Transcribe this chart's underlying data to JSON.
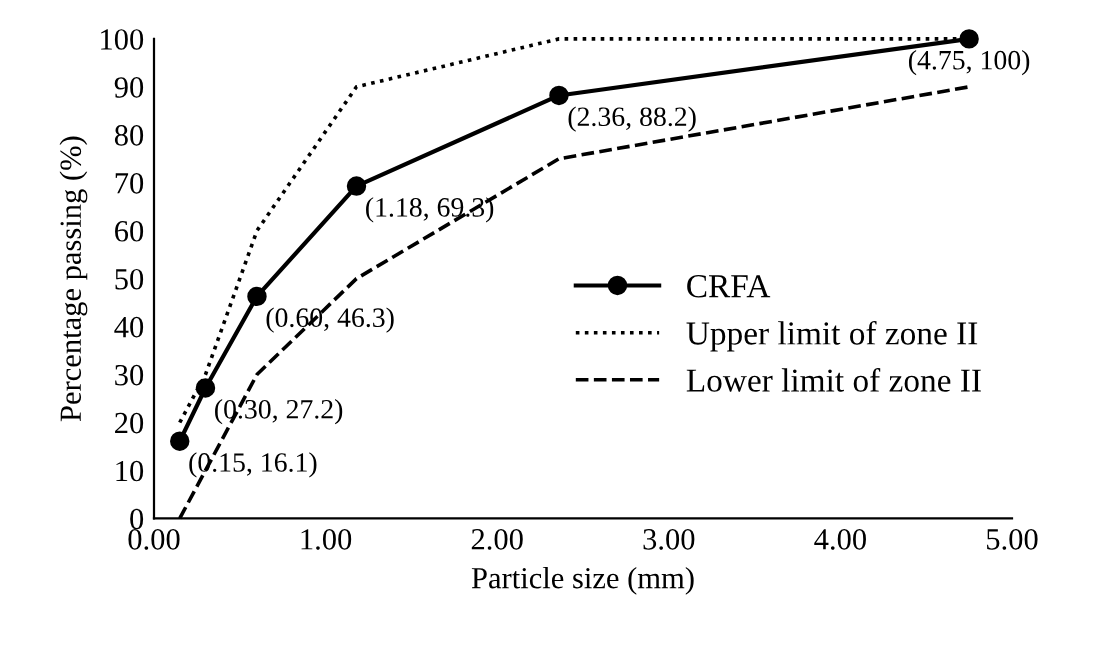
{
  "chart_data": {
    "type": "line",
    "xlabel": "Particle size (mm)",
    "ylabel": "Percentage passing (%)",
    "xlim": [
      0,
      5
    ],
    "xticks": [
      {
        "value": 0,
        "label": "0.00"
      },
      {
        "value": 1,
        "label": "1.00"
      },
      {
        "value": 2,
        "label": "2.00"
      },
      {
        "value": 3,
        "label": "3.00"
      },
      {
        "value": 4,
        "label": "4.00"
      },
      {
        "value": 5,
        "label": "5.00"
      }
    ],
    "ylim": [
      0,
      100
    ],
    "yticks": [
      0,
      10,
      20,
      30,
      40,
      50,
      60,
      70,
      80,
      90,
      100
    ],
    "grid": false,
    "legend": "right",
    "series": [
      {
        "name": "CRFA",
        "color": "#000000",
        "marker": "circle",
        "line_style": "solid",
        "x": [
          0.15,
          0.3,
          0.6,
          1.18,
          2.36,
          4.75
        ],
        "values": [
          16.1,
          27.2,
          46.3,
          69.3,
          88.2,
          100
        ]
      },
      {
        "name": "Upper limit of zone II",
        "color": "#000000",
        "marker": "none",
        "line_style": "dotted",
        "x": [
          0.15,
          0.3,
          0.6,
          1.18,
          2.36,
          4.75
        ],
        "values": [
          20,
          30,
          60,
          90,
          100,
          100
        ]
      },
      {
        "name": "Lower limit of zone II",
        "color": "#000000",
        "marker": "none",
        "line_style": "dashed",
        "x": [
          0.15,
          0.3,
          0.6,
          1.18,
          2.36,
          4.75
        ],
        "values": [
          0,
          10,
          30,
          50,
          75,
          90
        ]
      }
    ],
    "annotations": [
      {
        "text": "(0.15, 16.1)",
        "x": 0.15,
        "y": 16.1
      },
      {
        "text": "(0.30, 27.2)",
        "x": 0.3,
        "y": 27.2
      },
      {
        "text": "(0.60, 46.3)",
        "x": 0.6,
        "y": 46.3
      },
      {
        "text": "(1.18, 69.3)",
        "x": 1.18,
        "y": 69.3
      },
      {
        "text": "(2.36, 88.2)",
        "x": 2.36,
        "y": 88.2
      },
      {
        "text": "(4.75, 100)",
        "x": 4.75,
        "y": 100
      }
    ]
  }
}
